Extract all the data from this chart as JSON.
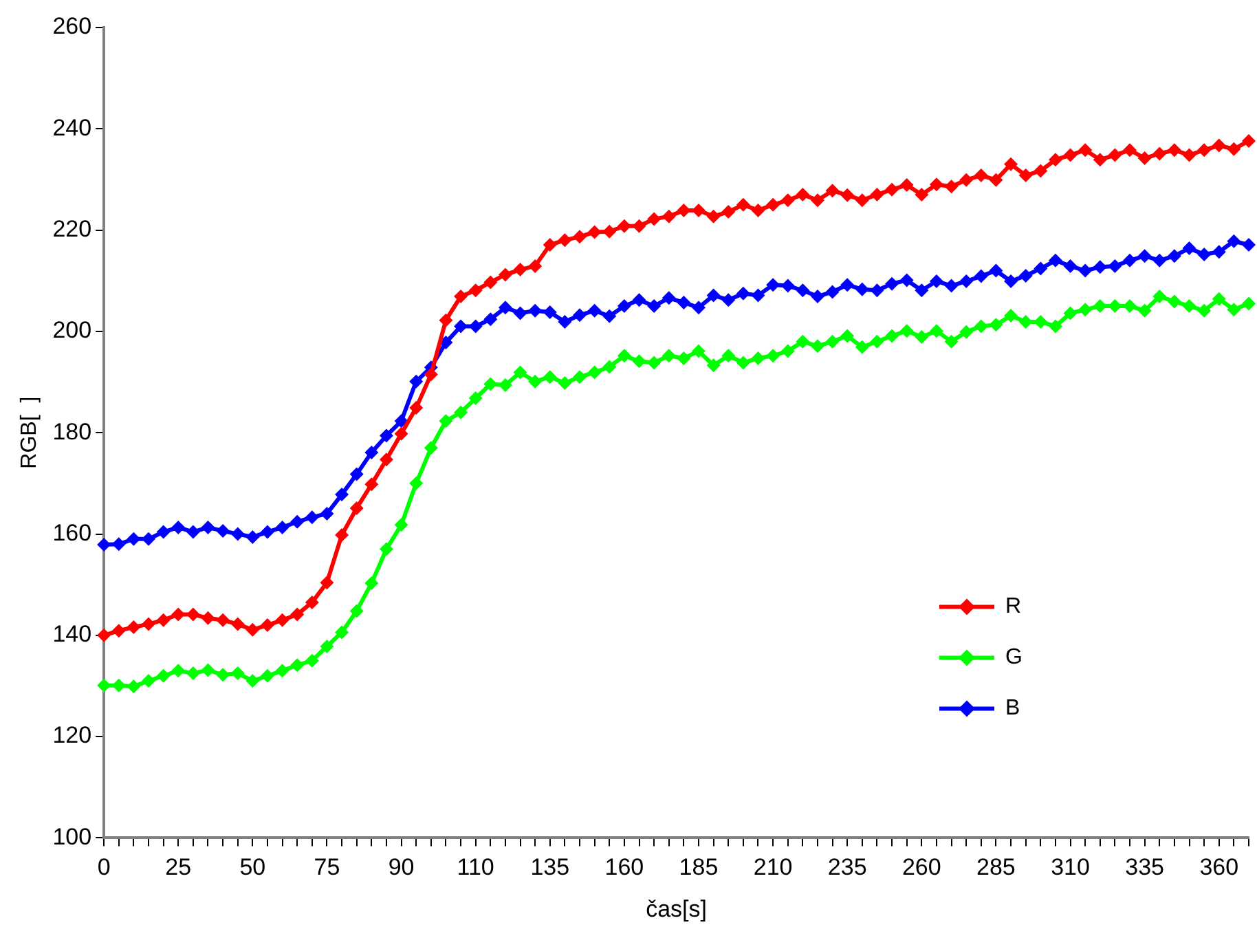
{
  "chart_data": {
    "type": "line",
    "xlabel": "čas[s]",
    "ylabel": "RGB[  ]",
    "categories": [
      "0",
      null,
      null,
      null,
      null,
      "25",
      null,
      null,
      null,
      null,
      "50",
      null,
      null,
      null,
      null,
      "75",
      null,
      null,
      null,
      null,
      "90",
      null,
      null,
      null,
      null,
      "110",
      null,
      null,
      null,
      null,
      "135",
      null,
      null,
      null,
      null,
      "160",
      null,
      null,
      null,
      null,
      "185",
      null,
      null,
      null,
      null,
      "210",
      null,
      null,
      null,
      null,
      "235",
      null,
      null,
      null,
      null,
      "260",
      null,
      null,
      null,
      null,
      "285",
      null,
      null,
      null,
      null,
      "310",
      null,
      null,
      null,
      null,
      "335",
      null,
      null,
      null,
      null,
      "360",
      null,
      null
    ],
    "series": [
      {
        "name": "R",
        "color": "#ff0000",
        "values": [
          140,
          140.9,
          141.6,
          142.2,
          143,
          144.1,
          144.1,
          143.4,
          143,
          142.2,
          141.1,
          142,
          143,
          144.1,
          146.5,
          150.4,
          159.8,
          165.1,
          169.8,
          174.7,
          179.8,
          184.9,
          191.5,
          202.2,
          206.9,
          208.1,
          209.7,
          211.2,
          212.2,
          212.9,
          217.1,
          218,
          218.7,
          219.6,
          219.7,
          220.8,
          220.8,
          222.2,
          222.7,
          223.9,
          223.9,
          222.7,
          223.6,
          225,
          223.9,
          225,
          225.9,
          227,
          225.9,
          227.8,
          226.9,
          225.9,
          227,
          228,
          228.9,
          227,
          229,
          228.6,
          229.9,
          230.8,
          229.9,
          233,
          230.8,
          231.7,
          233.9,
          234.8,
          235.8,
          233.9,
          234.8,
          235.8,
          234.2,
          235.1,
          235.8,
          234.8,
          235.8,
          236.7,
          236,
          237.6
        ]
      },
      {
        "name": "G",
        "color": "#00ff00",
        "values": [
          130.1,
          130.1,
          129.9,
          131,
          132,
          133,
          132.5,
          133.1,
          132.2,
          132.5,
          131,
          132,
          133,
          134.1,
          135,
          137.8,
          140.6,
          144.8,
          150.3,
          157,
          161.8,
          170,
          177,
          182.3,
          184,
          186.8,
          189.6,
          189.4,
          191.9,
          190.1,
          191,
          189.8,
          191,
          191.9,
          193,
          195.2,
          194.1,
          193.8,
          195.2,
          194.7,
          196.1,
          193.3,
          195.2,
          193.8,
          194.7,
          195.2,
          196.1,
          198,
          197.1,
          198,
          199.1,
          196.9,
          198,
          199.1,
          200.1,
          198.9,
          200.1,
          198,
          199.9,
          201,
          201.3,
          203.1,
          201.9,
          201.9,
          201,
          203.6,
          204.3,
          205,
          205,
          205,
          204.1,
          206.9,
          205.9,
          205,
          204.1,
          206.4,
          204.3,
          205.5
        ]
      },
      {
        "name": "B",
        "color": "#0000ff",
        "values": [
          157.9,
          158,
          159,
          159,
          160.4,
          161.3,
          160.4,
          161.3,
          160.6,
          160,
          159.4,
          160.4,
          161.3,
          162.4,
          163.3,
          164,
          167.8,
          171.8,
          176.1,
          179.4,
          182.3,
          190.1,
          192.9,
          197.8,
          201,
          201,
          202.4,
          204.7,
          203.6,
          204.1,
          203.8,
          201.9,
          203.2,
          204.1,
          203,
          205,
          206.2,
          205,
          206.6,
          205.7,
          204.7,
          207.1,
          206.2,
          207.5,
          207.1,
          209.2,
          209,
          208.1,
          206.9,
          207.8,
          209.2,
          208.3,
          208.1,
          209.4,
          210.1,
          208.1,
          209.9,
          209,
          209.9,
          210.9,
          212,
          209.9,
          211,
          212.4,
          214,
          212.9,
          212,
          212.7,
          212.9,
          214,
          214.9,
          214,
          214.9,
          216.4,
          215.2,
          215.7,
          217.8,
          217.1
        ]
      }
    ],
    "ylim": [
      100,
      260
    ],
    "yticks": [
      100,
      120,
      140,
      160,
      180,
      200,
      220,
      240,
      260
    ],
    "grid": false,
    "legend": "bottom right",
    "marker": "diamond",
    "line_style": "solid"
  }
}
